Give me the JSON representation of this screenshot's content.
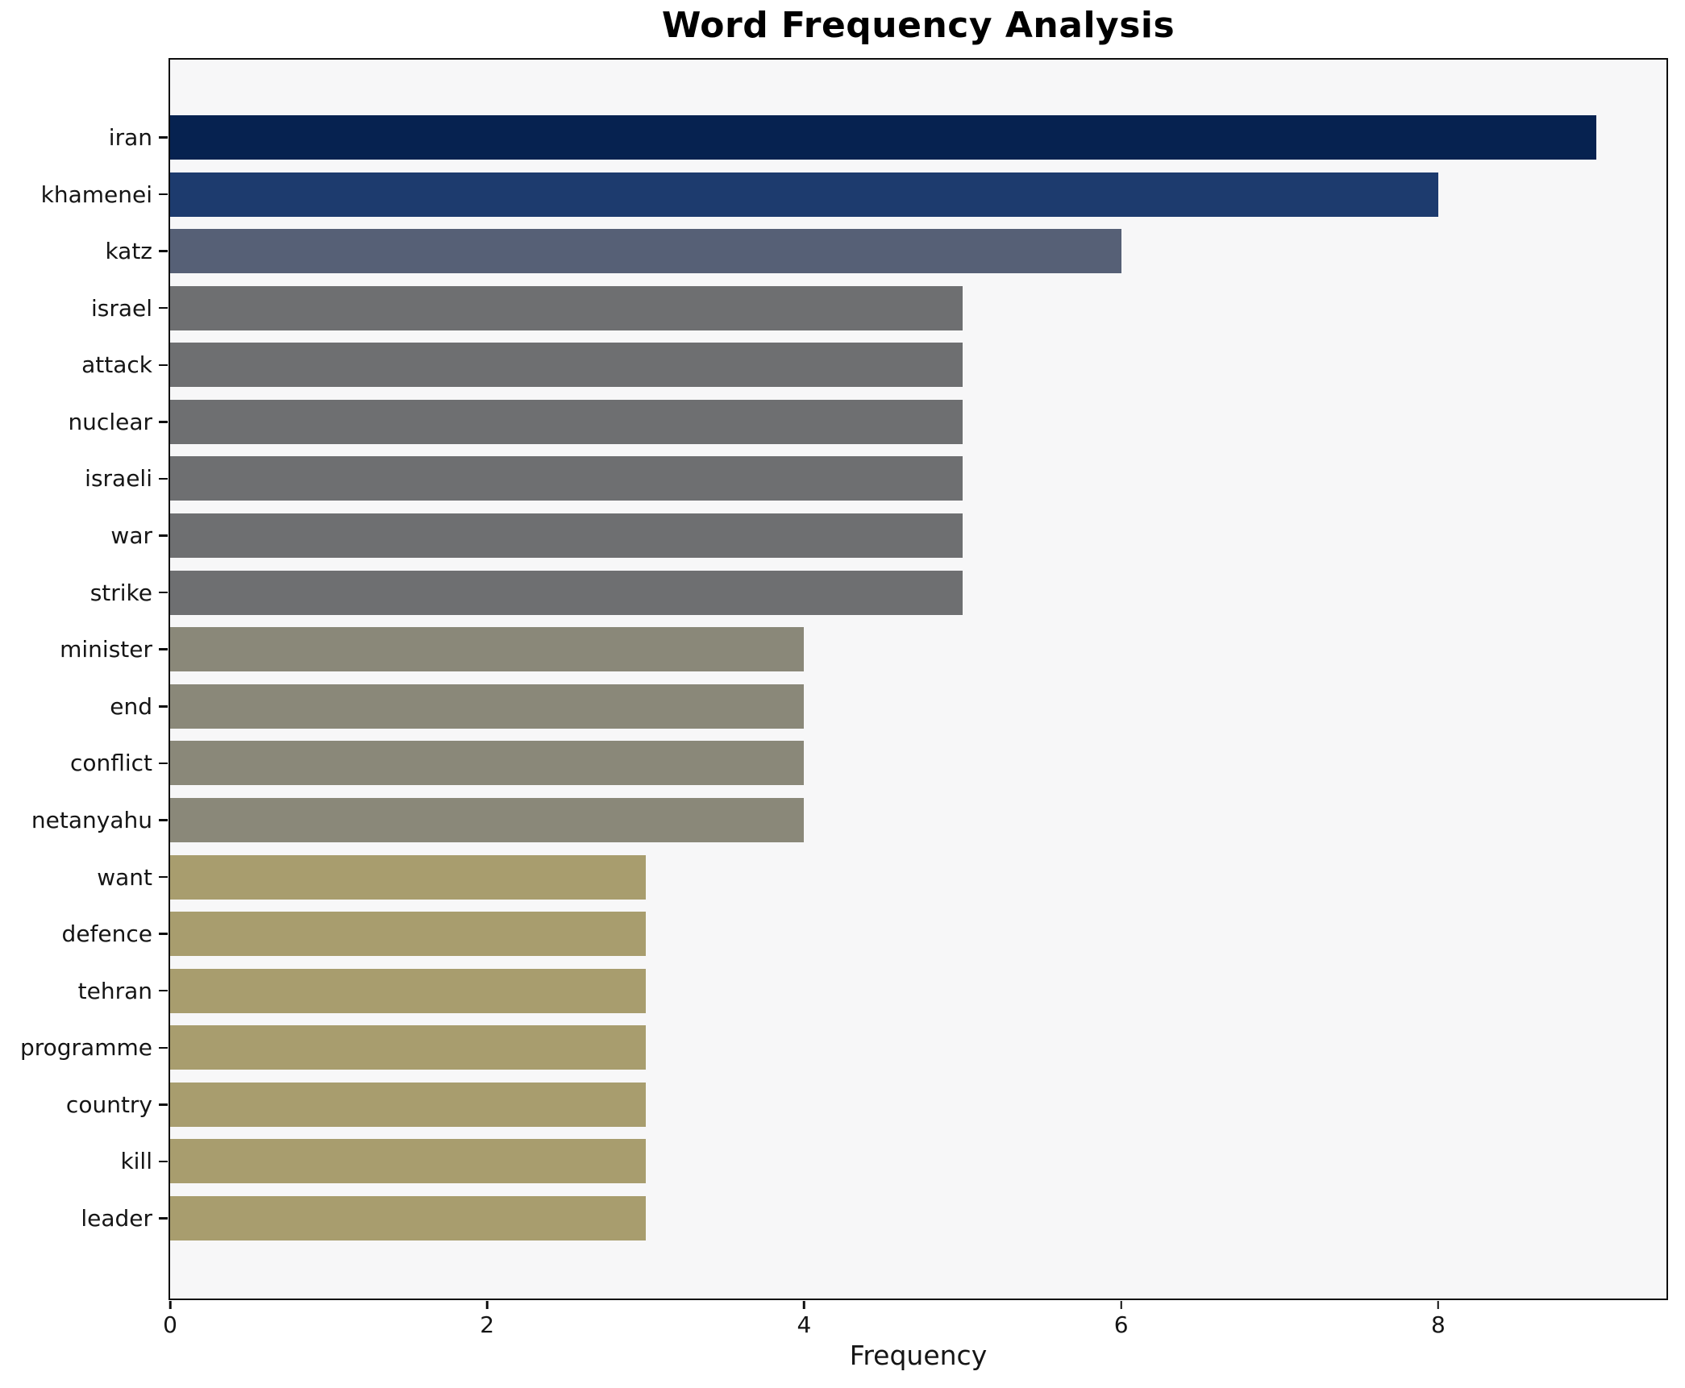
{
  "chart_data": {
    "type": "bar",
    "orientation": "horizontal",
    "title": "Word Frequency Analysis",
    "xlabel": "Frequency",
    "ylabel": "",
    "categories": [
      "iran",
      "khamenei",
      "katz",
      "israel",
      "attack",
      "nuclear",
      "israeli",
      "war",
      "strike",
      "minister",
      "end",
      "conflict",
      "netanyahu",
      "want",
      "defence",
      "tehran",
      "programme",
      "country",
      "kill",
      "leader"
    ],
    "values": [
      9,
      8,
      6,
      5,
      5,
      5,
      5,
      5,
      5,
      4,
      4,
      4,
      4,
      3,
      3,
      3,
      3,
      3,
      3,
      3
    ],
    "bar_colors": [
      "#062250",
      "#1d3b6e",
      "#566076",
      "#6e6f71",
      "#6e6f71",
      "#6e6f71",
      "#6e6f71",
      "#6e6f71",
      "#6e6f71",
      "#8a8879",
      "#8a8879",
      "#8a8879",
      "#8a8879",
      "#a89d6e",
      "#a89d6e",
      "#a89d6e",
      "#a89d6e",
      "#a89d6e",
      "#a89d6e",
      "#a89d6e"
    ],
    "x_ticks": [
      0,
      2,
      4,
      6,
      8
    ],
    "xlim": [
      0,
      9.44
    ],
    "grid": false,
    "legend": false,
    "plot_background": "#f7f7f8",
    "spine_color": "#0e0e0e",
    "text_color": "#151515"
  }
}
